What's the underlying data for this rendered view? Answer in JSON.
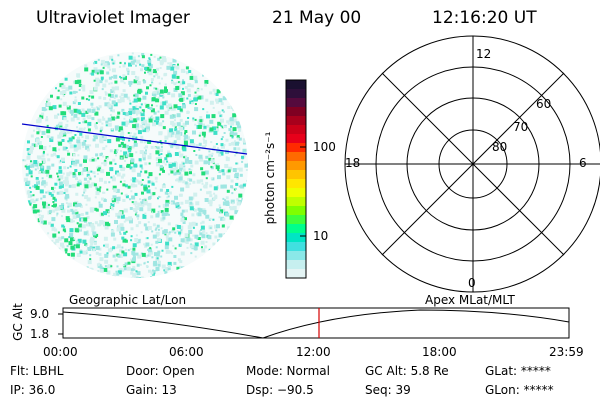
{
  "header": {
    "title": "Ultraviolet Imager",
    "date": "21 May 00",
    "time": "12:16:20 UT"
  },
  "colorbar": {
    "unit_label": "photon cm⁻²s⁻¹",
    "ticks": [
      "100",
      "10"
    ],
    "colors": [
      "#1a1030",
      "#2e0f3a",
      "#550a3d",
      "#7f0022",
      "#a8001c",
      "#cc0018",
      "#e8001a",
      "#ff2a00",
      "#ff6a00",
      "#ff9900",
      "#ffc400",
      "#ffe600",
      "#eeff00",
      "#bfff00",
      "#7fff00",
      "#3dff3d",
      "#00ff8c",
      "#00e5c4",
      "#40e0e0",
      "#8ae8e8",
      "#c6efef",
      "#e4f4f4"
    ]
  },
  "polar": {
    "mlt_labels": {
      "top": "12",
      "left": "18",
      "right": "6",
      "bottom": "0"
    },
    "lat_labels": [
      "60",
      "70",
      "80"
    ]
  },
  "altitude_plot": {
    "left_title": "Geographic Lat/Lon",
    "right_title": "Apex MLat/MLT",
    "axis_label": "GC Alt",
    "y_ticks": [
      "9.0",
      "1.8"
    ],
    "x_ticks": [
      "00:00",
      "06:00",
      "12:00",
      "18:00",
      "23:59"
    ],
    "marker_color": "#d40000"
  },
  "info": {
    "row1": {
      "filter": "Flt: LBHL",
      "door": "Door: Open",
      "mode": "Mode: Normal",
      "gc_alt": "GC Alt: 5.8 Re",
      "glat": "GLat: *****"
    },
    "row2": {
      "ip": "IP: 36.0",
      "gain": "Gain: 13",
      "dsp": "Dsp:  −90.5",
      "seq": "Seq: 39",
      "glon": "GLon: *****"
    }
  }
}
